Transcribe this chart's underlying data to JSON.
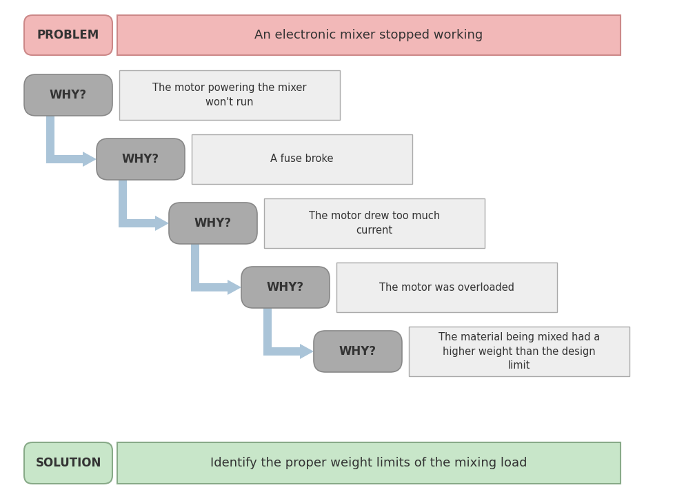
{
  "background_color": "#ffffff",
  "problem_label": "PROBLEM",
  "problem_text": "An electronic mixer stopped working",
  "solution_label": "SOLUTION",
  "solution_text": "Identify the proper weight limits of the mixing load",
  "why_label": "WHY?",
  "why_answers": [
    "The motor powering the mixer\nwon't run",
    "A fuse broke",
    "The motor drew too much\ncurrent",
    "The motor was overloaded",
    "The material being mixed had a\nhigher weight than the design\nlimit"
  ],
  "problem_box_color": "#f2b8b8",
  "problem_label_color": "#f2b8b8",
  "solution_box_color": "#c8e6c9",
  "solution_label_color": "#c8e6c9",
  "why_box_color": "#aaaaaa",
  "answer_box_color": "#eeeeee",
  "arrow_color": "#aac4d8",
  "text_color": "#333333",
  "edge_color_problem": "#cc8888",
  "edge_color_solution": "#88aa88",
  "edge_color_why": "#888888",
  "edge_color_answer": "#aaaaaa"
}
